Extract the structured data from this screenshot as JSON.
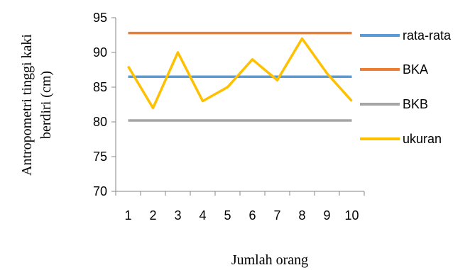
{
  "chart_data": {
    "type": "line",
    "xlabel": "Jumlah orang",
    "ylabel_lines": [
      "Antropometri tinggi kaki",
      "berdiri (cm)"
    ],
    "x": [
      1,
      2,
      3,
      4,
      5,
      6,
      7,
      8,
      9,
      10
    ],
    "ylim": [
      70,
      95
    ],
    "yticks": [
      70,
      75,
      80,
      85,
      90,
      95
    ],
    "grid": false,
    "legend_position": "right",
    "series": [
      {
        "name": "rata-rata",
        "color": "#5B9BD5",
        "values": [
          86.5,
          86.5,
          86.5,
          86.5,
          86.5,
          86.5,
          86.5,
          86.5,
          86.5,
          86.5
        ]
      },
      {
        "name": "BKA",
        "color": "#ED7D31",
        "values": [
          92.8,
          92.8,
          92.8,
          92.8,
          92.8,
          92.8,
          92.8,
          92.8,
          92.8,
          92.8
        ]
      },
      {
        "name": "BKB",
        "color": "#A5A5A5",
        "values": [
          80.2,
          80.2,
          80.2,
          80.2,
          80.2,
          80.2,
          80.2,
          80.2,
          80.2,
          80.2
        ]
      },
      {
        "name": "ukuran",
        "color": "#FFC000",
        "values": [
          88,
          82,
          90,
          83,
          85,
          89,
          86,
          92,
          87,
          83
        ]
      }
    ]
  }
}
